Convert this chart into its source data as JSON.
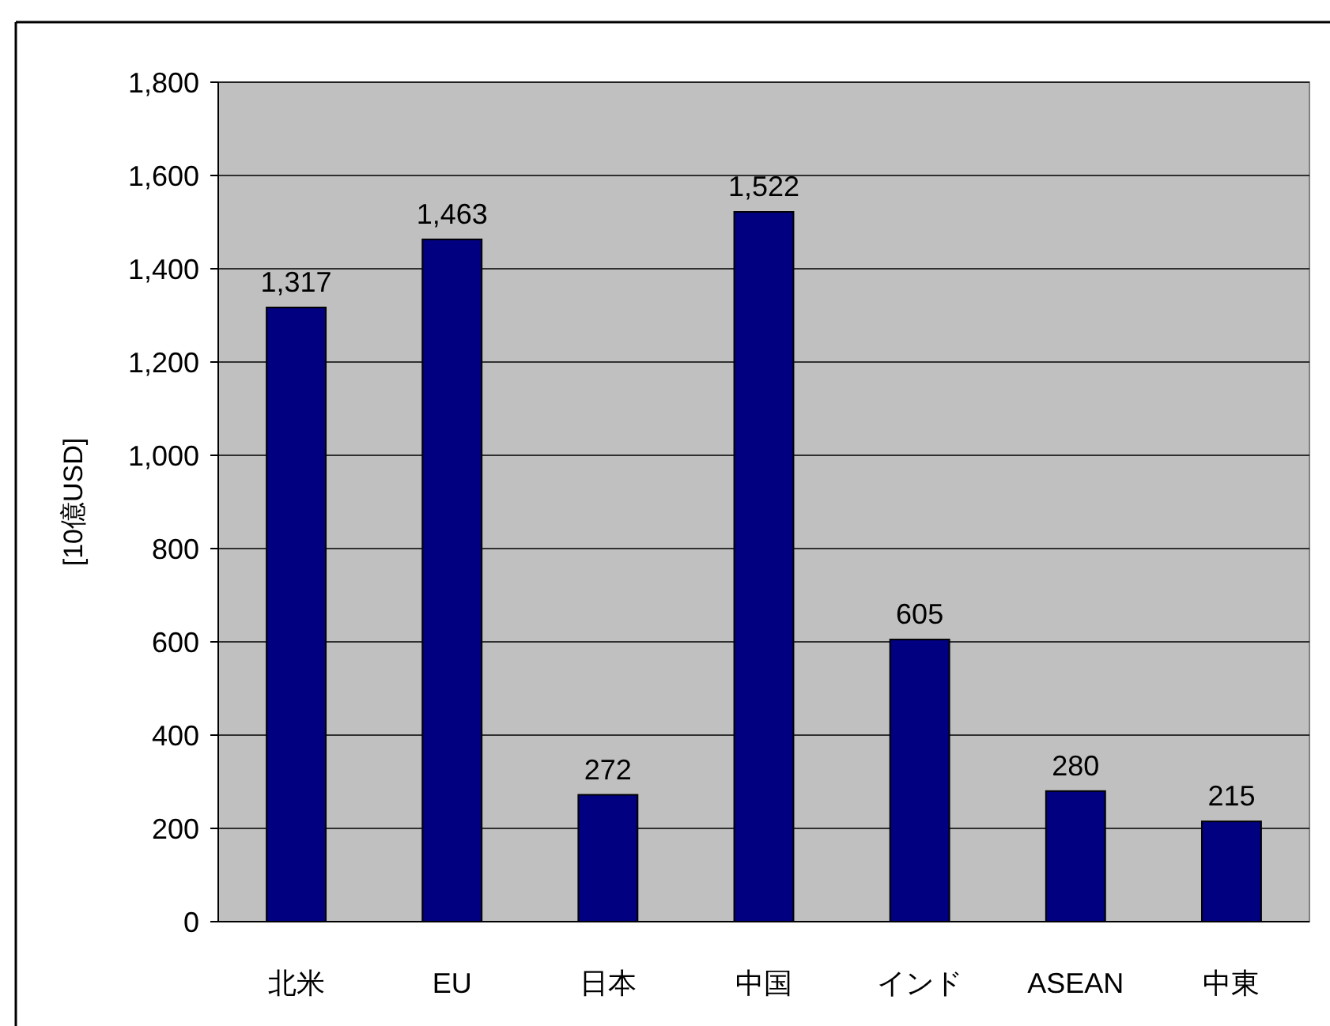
{
  "chart_data": {
    "type": "bar",
    "ylabel": "[10億USD]",
    "categories": [
      "北米",
      "EU",
      "日本",
      "中国",
      "インド",
      "ASEAN",
      "中東"
    ],
    "values": [
      1317,
      1463,
      272,
      1522,
      605,
      280,
      215
    ],
    "color": "#000080",
    "ylim": [
      0,
      1800
    ],
    "yticks": [
      {
        "value": 0,
        "label": "0"
      },
      {
        "value": 200,
        "label": "200"
      },
      {
        "value": 400,
        "label": "400"
      },
      {
        "value": 600,
        "label": "600"
      },
      {
        "value": 800,
        "label": "800"
      },
      {
        "value": 1000,
        "label": "1,000"
      },
      {
        "value": 1200,
        "label": "1,200"
      },
      {
        "value": 1400,
        "label": "1,400"
      },
      {
        "value": 1600,
        "label": "1,600"
      },
      {
        "value": 1800,
        "label": "1,800"
      }
    ],
    "value_labels": [
      "1,317",
      "1,463",
      "272",
      "1,522",
      "605",
      "280",
      "215"
    ],
    "grid": "y"
  }
}
